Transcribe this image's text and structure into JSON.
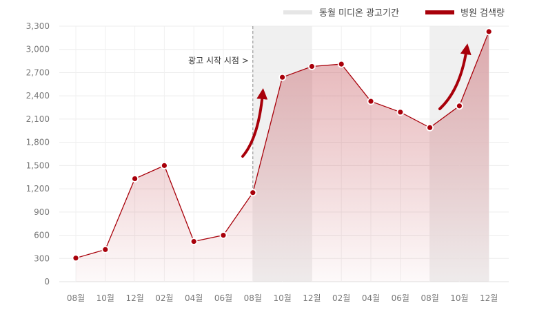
{
  "chart_data": {
    "type": "area",
    "x": [
      "08월",
      "10월",
      "12월",
      "02월",
      "04월",
      "06월",
      "08월",
      "10월",
      "12월",
      "02월",
      "04월",
      "06월",
      "08월",
      "10월",
      "12월"
    ],
    "series": [
      {
        "name": "병원 검색량",
        "values": [
          305,
          415,
          1330,
          1500,
          520,
          600,
          1150,
          2640,
          2780,
          2810,
          2330,
          2190,
          1990,
          2270,
          3230
        ]
      }
    ],
    "legend": [
      {
        "label": "동월 미디온 광고기간",
        "color": "#e6e6e6"
      },
      {
        "label": "병원 검색량",
        "color": "#a8000a"
      }
    ],
    "ad_periods": [
      {
        "start_index": 6,
        "end_index": 8
      },
      {
        "start_index": 12,
        "end_index": 14
      }
    ],
    "annotation": {
      "text": "광고 시작 시점 >",
      "at_index": 6
    },
    "yticks": [
      0,
      300,
      600,
      900,
      1200,
      1500,
      1800,
      2100,
      2400,
      2700,
      3000,
      3300
    ],
    "ylim": [
      0,
      3300
    ],
    "grid": true,
    "legend_position": "top-right",
    "colors": {
      "line": "#a8000a",
      "fill": "#c0464e",
      "shade": "#ebebeb",
      "arrow": "#a8000a"
    }
  }
}
